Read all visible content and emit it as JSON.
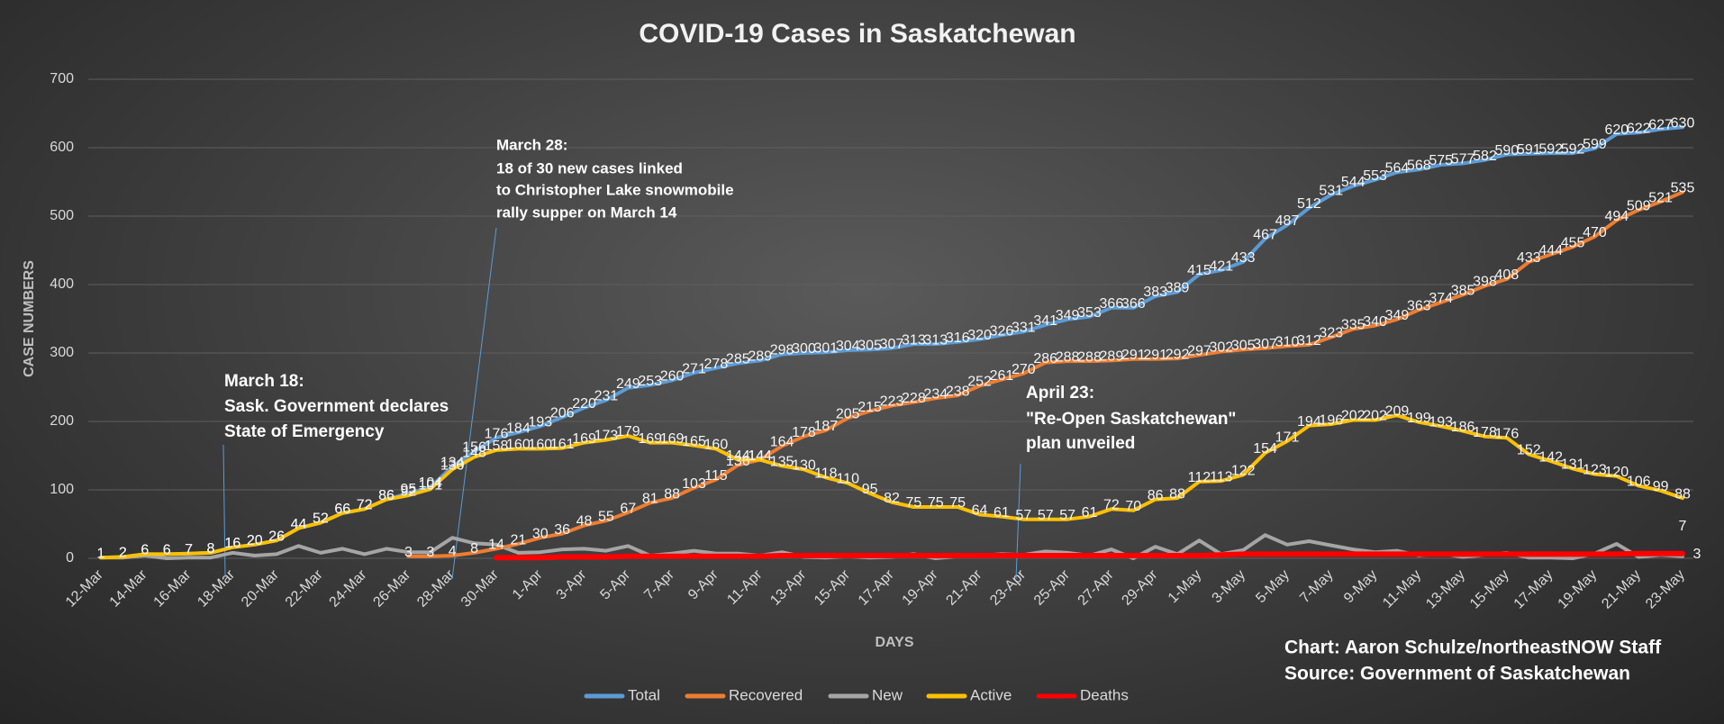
{
  "chart_data": {
    "type": "line",
    "title": "COVID-19 Cases in Saskatchewan",
    "x_label": "DAYS",
    "y_label": "CASE NUMBERS",
    "credits": [
      "Chart: Aaron Schulze/northeastNOW Staff",
      "Source: Government of Saskatchewan"
    ],
    "categories": [
      "12-Mar",
      null,
      "14-Mar",
      null,
      "16-Mar",
      null,
      "18-Mar",
      null,
      "20-Mar",
      null,
      "22-Mar",
      null,
      "24-Mar",
      null,
      "26-Mar",
      null,
      "28-Mar",
      null,
      "30-Mar",
      null,
      "1-Apr",
      null,
      "3-Apr",
      null,
      "5-Apr",
      null,
      "7-Apr",
      null,
      "9-Apr",
      null,
      "11-Apr",
      null,
      "13-Apr",
      null,
      "15-Apr",
      null,
      "17-Apr",
      null,
      "19-Apr",
      null,
      "21-Apr",
      null,
      "23-Apr",
      null,
      "25-Apr",
      null,
      "27-Apr",
      null,
      "29-Apr",
      null,
      "1-May",
      null,
      "3-May",
      null,
      "5-May",
      null,
      "7-May",
      null,
      "9-May",
      null,
      "11-May",
      null,
      "13-May",
      null,
      "15-May",
      null,
      "17-May",
      null,
      "19-May",
      null,
      "21-May",
      null,
      "23-May"
    ],
    "ylim": [
      0,
      700
    ],
    "yticks": [
      0,
      100,
      200,
      300,
      400,
      500,
      600,
      700
    ],
    "grid": true,
    "legend": "bottom",
    "series": [
      {
        "name": "Total",
        "color": "#5b9bd5",
        "data_labels": "all",
        "values": [
          1,
          2,
          6,
          6,
          7,
          8,
          16,
          20,
          26,
          44,
          52,
          66,
          72,
          86,
          95,
          104,
          134,
          156,
          176,
          184,
          193,
          206,
          220,
          231,
          249,
          253,
          260,
          271,
          278,
          285,
          289,
          298,
          300,
          301,
          304,
          305,
          307,
          313,
          313,
          316,
          320,
          326,
          331,
          341,
          349,
          353,
          366,
          366,
          383,
          389,
          415,
          421,
          433,
          467,
          487,
          512,
          531,
          544,
          553,
          564,
          568,
          575,
          577,
          582,
          590,
          591,
          592,
          592,
          599,
          620,
          622,
          627,
          630
        ]
      },
      {
        "name": "Recovered",
        "color": "#ed7d31",
        "data_labels": "all",
        "values": [
          null,
          null,
          null,
          null,
          null,
          null,
          null,
          null,
          null,
          null,
          null,
          null,
          null,
          null,
          3,
          3,
          4,
          8,
          14,
          21,
          30,
          36,
          48,
          55,
          67,
          81,
          88,
          103,
          115,
          136,
          144,
          164,
          178,
          187,
          205,
          215,
          223,
          228,
          234,
          238,
          252,
          261,
          270,
          286,
          288,
          288,
          289,
          291,
          291,
          292,
          297,
          302,
          305,
          307,
          310,
          312,
          323,
          335,
          340,
          349,
          363,
          374,
          385,
          398,
          408,
          433,
          444,
          455,
          470,
          494,
          509,
          521,
          535
        ]
      },
      {
        "name": "New",
        "color": "#a5a5a5",
        "data_labels": "last",
        "values": [
          1,
          1,
          4,
          0,
          1,
          1,
          8,
          4,
          6,
          18,
          8,
          14,
          6,
          14,
          9,
          9,
          30,
          22,
          20,
          8,
          9,
          13,
          14,
          11,
          18,
          4,
          7,
          11,
          7,
          7,
          4,
          9,
          2,
          1,
          3,
          1,
          2,
          6,
          0,
          3,
          4,
          6,
          5,
          10,
          8,
          4,
          13,
          0,
          17,
          6,
          26,
          6,
          12,
          34,
          20,
          25,
          19,
          13,
          9,
          11,
          4,
          7,
          2,
          5,
          8,
          1,
          1,
          0,
          7,
          21,
          2,
          5,
          3
        ]
      },
      {
        "name": "Active",
        "color": "#ffc000",
        "data_labels": "all",
        "values": [
          1,
          2,
          6,
          6,
          7,
          8,
          16,
          20,
          26,
          44,
          52,
          66,
          72,
          86,
          92,
          101,
          130,
          148,
          158,
          160,
          160,
          161,
          169,
          173,
          179,
          169,
          169,
          165,
          160,
          144,
          144,
          135,
          130,
          118,
          110,
          95,
          82,
          75,
          75,
          75,
          64,
          61,
          57,
          57,
          57,
          61,
          72,
          70,
          86,
          88,
          112,
          113,
          122,
          154,
          171,
          194,
          196,
          202,
          202,
          209,
          199,
          193,
          186,
          178,
          176,
          152,
          142,
          131,
          123,
          120,
          106,
          99,
          88
        ]
      },
      {
        "name": "Deaths",
        "color": "#ff0000",
        "data_labels": "last",
        "values": [
          null,
          null,
          null,
          null,
          null,
          null,
          null,
          null,
          null,
          null,
          null,
          null,
          null,
          null,
          null,
          null,
          null,
          null,
          1,
          1,
          1,
          2,
          2,
          2,
          3,
          3,
          3,
          3,
          3,
          3,
          3,
          4,
          4,
          4,
          4,
          4,
          4,
          4,
          4,
          4,
          4,
          4,
          4,
          4,
          4,
          4,
          4,
          4,
          4,
          4,
          4,
          5,
          6,
          6,
          6,
          6,
          6,
          6,
          6,
          6,
          6,
          6,
          6,
          6,
          6,
          6,
          6,
          6,
          6,
          6,
          7,
          7,
          7
        ]
      }
    ],
    "annotations": [
      {
        "lines": [
          "March 18:",
          "Sask. Government declares",
          "State of Emergency"
        ]
      },
      {
        "lines": [
          "March 28:",
          "18 of 30 new cases linked",
          "to Christopher Lake snowmobile",
          "rally supper on March 14"
        ]
      },
      {
        "lines": [
          "April 23:",
          "\"Re-Open Saskatchewan\"",
          "plan unveiled"
        ]
      }
    ]
  }
}
